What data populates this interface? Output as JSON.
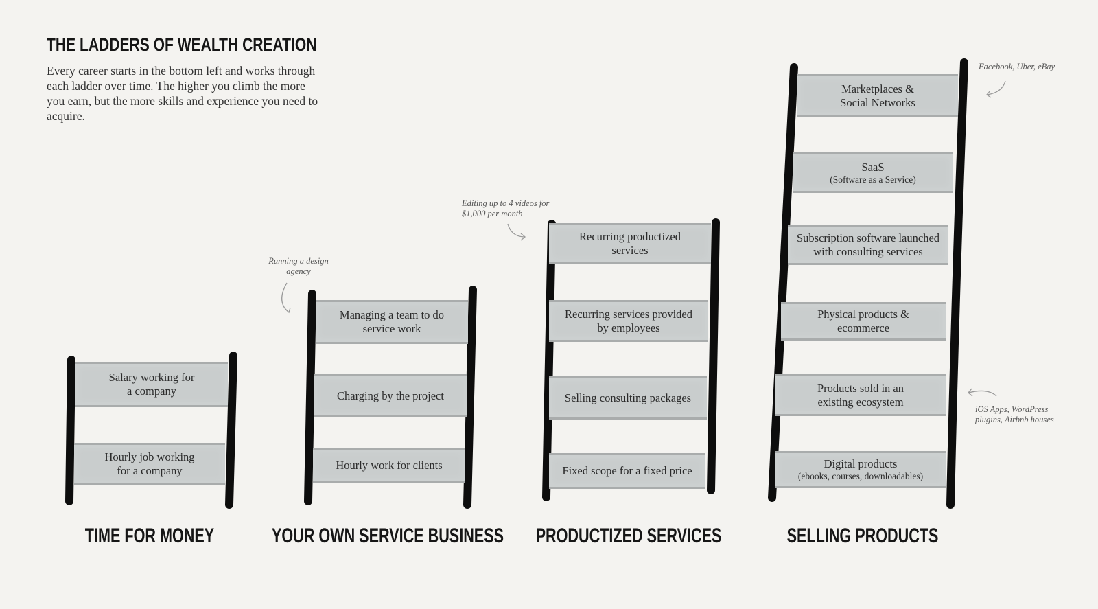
{
  "header": {
    "title": "THE LADDERS OF WEALTH CREATION",
    "intro": "Every career starts in the bottom left and works through each ladder over time. The higher you climb the more you earn, but the more skills and experience you need to acquire."
  },
  "ladders": [
    {
      "label": "TIME FOR MONEY",
      "rungs": [
        {
          "text": "Salary working for a company"
        },
        {
          "text": "Hourly job working for a company"
        }
      ]
    },
    {
      "label": "YOUR OWN SERVICE BUSINESS",
      "rungs": [
        {
          "text": "Managing a team to do service work"
        },
        {
          "text": "Charging by the project"
        },
        {
          "text": "Hourly work for clients"
        }
      ]
    },
    {
      "label": "PRODUCTIZED SERVICES",
      "rungs": [
        {
          "text": "Recurring productized services"
        },
        {
          "text": "Recurring services provided by employees"
        },
        {
          "text": "Selling consulting packages"
        },
        {
          "text": "Fixed scope for a fixed price"
        }
      ]
    },
    {
      "label": "SELLING PRODUCTS",
      "rungs": [
        {
          "text": "Marketplaces & Social Networks"
        },
        {
          "text": "SaaS",
          "sub": "(Software as a Service)"
        },
        {
          "text": "Subscription software launched with consulting services"
        },
        {
          "text": "Physical products & ecommerce"
        },
        {
          "text": "Products sold in an existing ecosystem"
        },
        {
          "text": "Digital products",
          "sub": "(ebooks, courses, downloadables)"
        }
      ]
    }
  ],
  "annotations": {
    "design_agency": "Running a design agency",
    "videos": "Editing up to 4 videos for $1,000 per month",
    "marketplaces": "Facebook, Uber, eBay",
    "ecosystem": "iOS Apps, WordPress plugins, Airbnb houses"
  },
  "colors": {
    "rail": "#0d0d0d",
    "rung": "#c9cdcd",
    "background": "#f4f3f0"
  }
}
